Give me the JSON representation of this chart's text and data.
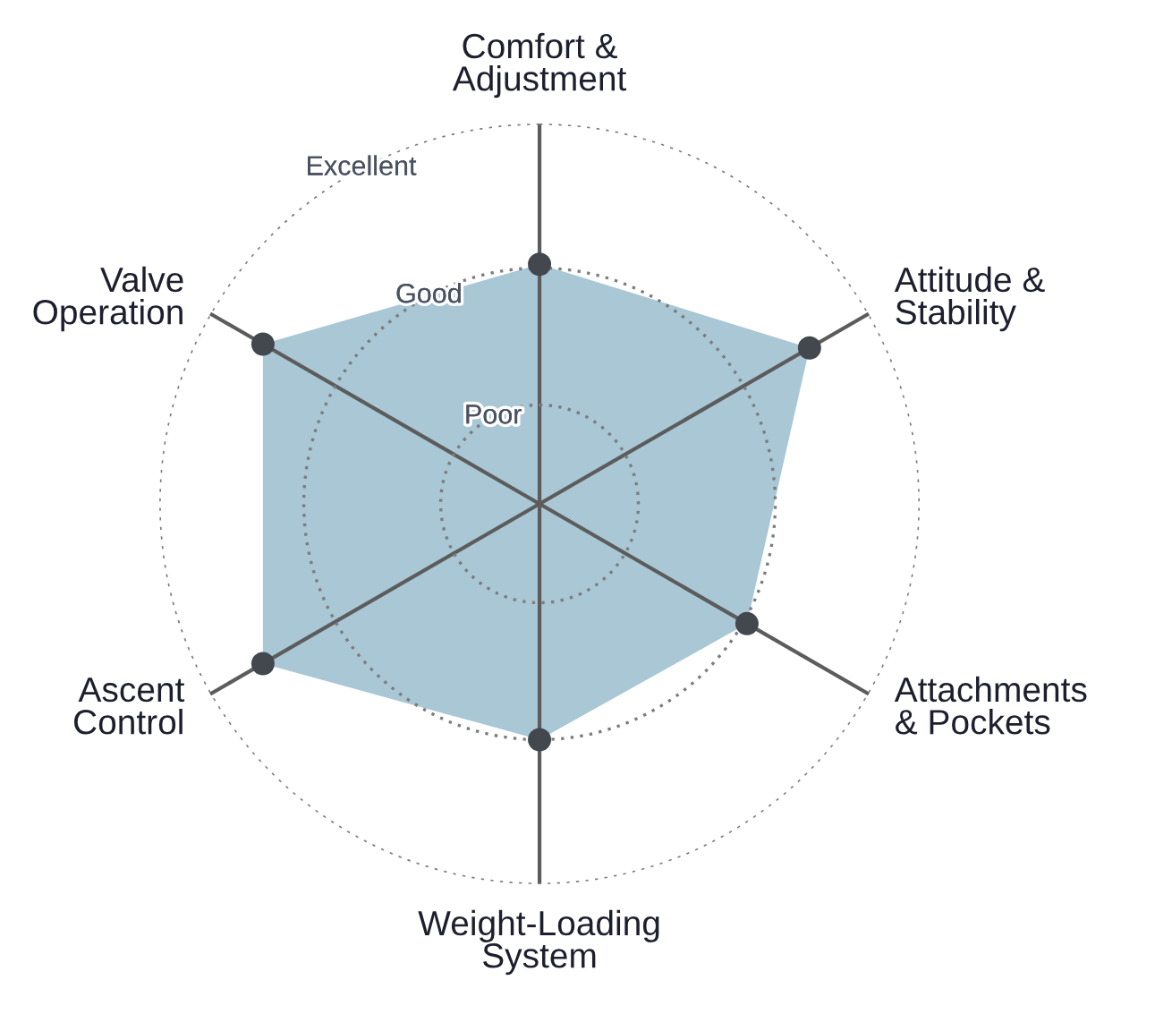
{
  "chart_data": {
    "type": "radar",
    "categories": [
      "Comfort &\nAdjustment",
      "Attitude &\nStability",
      "Attachments\n& Pockets",
      "Weight-Loading\nSystem",
      "Ascent\nControl",
      "Valve\nOperation"
    ],
    "series": [
      {
        "color": "#a9c7d5",
        "values": [
          0.63,
          0.82,
          0.63,
          0.62,
          0.84,
          0.84
        ]
      }
    ],
    "ylim": [
      0,
      1
    ],
    "yticks": [
      {
        "value": 0.26,
        "label": "Poor"
      },
      {
        "value": 0.62,
        "label": "Good"
      },
      {
        "value": 1,
        "label": "Excellent"
      }
    ],
    "grid": true,
    "marker": "circle"
  }
}
